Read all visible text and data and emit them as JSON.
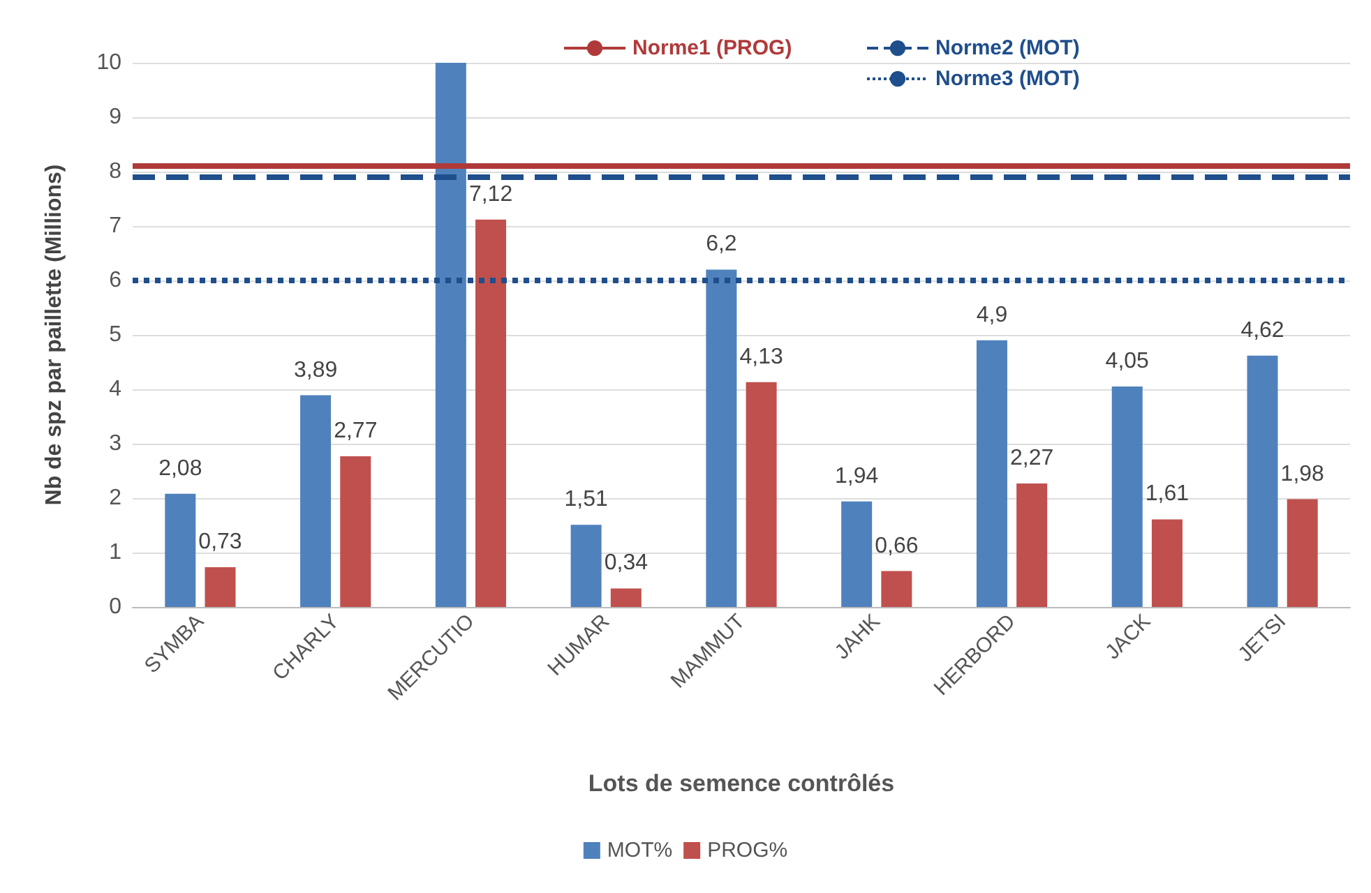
{
  "chart_data": {
    "type": "bar",
    "xlabel": "Lots de semence contrôlés",
    "ylabel": "Nb de spz par paillette (Millions)",
    "categories": [
      "SYMBA",
      "CHARLY",
      "MERCUTIO",
      "HUMAR",
      "MAMMUT",
      "JAHK",
      "HERBORD",
      "JACK",
      "JETSI"
    ],
    "series": [
      {
        "name": "MOT%",
        "color": "#4f81bd",
        "values": [
          2.08,
          3.89,
          10,
          1.51,
          6.2,
          1.94,
          4.9,
          4.05,
          4.62
        ],
        "value_labels": [
          "2,08",
          "3,89",
          null,
          "1,51",
          "6,2",
          "1,94",
          "4,9",
          "4,05",
          "4,62"
        ]
      },
      {
        "name": "PROG%",
        "color": "#c0504d",
        "values": [
          0.73,
          2.77,
          7.12,
          0.34,
          4.13,
          0.66,
          2.27,
          1.61,
          1.98
        ],
        "value_labels": [
          "0,73",
          "2,77",
          "7,12",
          "0,34",
          "4,13",
          "0,66",
          "2,27",
          "1,61",
          "1,98"
        ]
      }
    ],
    "ylim": [
      0,
      10
    ],
    "yticks": [
      0,
      1,
      2,
      3,
      4,
      5,
      6,
      7,
      8,
      9,
      10
    ],
    "grid": "y",
    "legend": "bottom",
    "ref_lines": [
      {
        "axis": "y",
        "value": 8.1,
        "label": "Norme1 (PROG)",
        "color": "#b03a3a",
        "line_style": "solid"
      },
      {
        "axis": "y",
        "value": 7.9,
        "label": "Norme2 (MOT)",
        "color": "#1f4e8c",
        "line_style": "dashed"
      },
      {
        "axis": "y",
        "value": 6,
        "label": "Norme3 (MOT)",
        "color": "#1f4e8c",
        "line_style": "dotted"
      }
    ]
  }
}
